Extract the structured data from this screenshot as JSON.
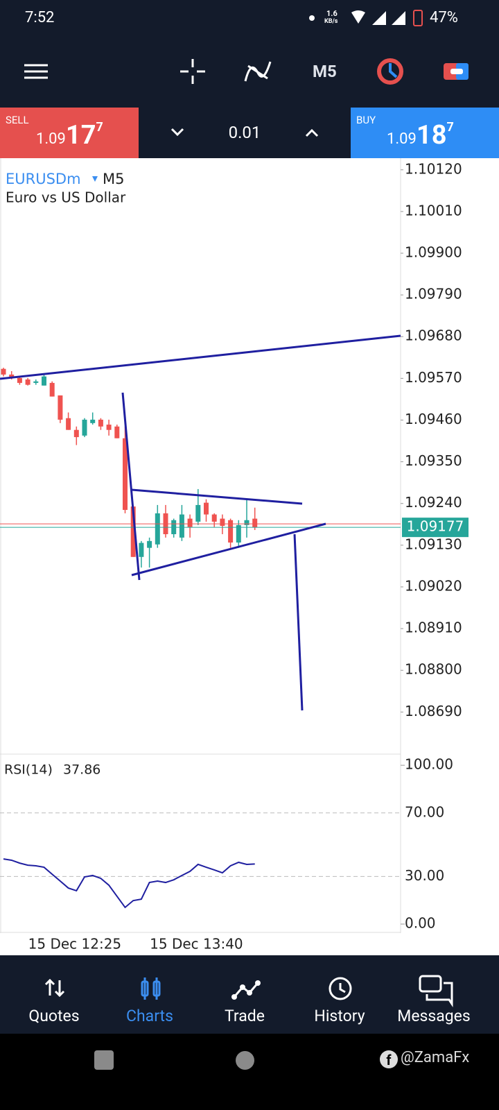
{
  "status_bar": {
    "time": "7:52",
    "speed": "1.6",
    "speed_unit": "KB/s",
    "battery": "47%"
  },
  "toolbar": {
    "timeframe": "M5"
  },
  "trade_bar": {
    "sell": {
      "label": "SELL",
      "price_main": "1.09",
      "price_big": "17",
      "price_sup": "7"
    },
    "volume": "0.01",
    "buy": {
      "label": "BUY",
      "price_main": "1.09",
      "price_big": "18",
      "price_sup": "7"
    }
  },
  "chart_data": [
    {
      "type": "candlestick",
      "symbol": "EURUSDm",
      "timeframe": "M5",
      "description": "Euro vs US Dollar",
      "categories": [
        null,
        null,
        null,
        null,
        null,
        null,
        null,
        "15 Dec 12:25",
        null,
        null,
        null,
        null,
        null,
        null,
        null,
        null,
        null,
        null,
        null,
        null,
        null,
        null,
        "15 Dec 13:40",
        null,
        null,
        null,
        null,
        null,
        null,
        null,
        null,
        null
      ],
      "open": [
        1.09595,
        1.0958,
        1.09571,
        1.09567,
        1.09558,
        1.09551,
        1.09558,
        1.09525,
        1.09465,
        1.09434,
        1.09419,
        1.09452,
        1.09461,
        1.09448,
        1.09443,
        1.09412,
        1.09232,
        1.09099,
        1.09123,
        1.09132,
        1.09214,
        1.09159,
        1.0915,
        1.092,
        1.09192,
        1.09242,
        1.09211,
        1.092,
        1.09196,
        1.09137,
        1.09183,
        1.092
      ],
      "high": [
        1.09598,
        1.09589,
        1.09575,
        1.09571,
        1.09567,
        1.0958,
        1.09562,
        1.09525,
        1.0948,
        1.09443,
        1.09465,
        1.0948,
        1.09465,
        1.09461,
        1.09448,
        1.09443,
        1.09236,
        1.09141,
        1.0915,
        1.09236,
        1.09236,
        1.092,
        1.09236,
        1.09211,
        1.09278,
        1.09251,
        1.09214,
        1.09211,
        1.092,
        1.09196,
        1.09251,
        1.09229
      ],
      "low": [
        1.09575,
        1.09567,
        1.09553,
        1.09551,
        1.09553,
        1.09551,
        1.09522,
        1.09452,
        1.09434,
        1.09394,
        1.09415,
        1.09448,
        1.09434,
        1.09419,
        1.09412,
        1.09214,
        1.09099,
        1.09071,
        1.09071,
        1.09123,
        1.0915,
        1.0915,
        1.09141,
        1.0915,
        1.09183,
        1.09192,
        1.09178,
        1.09159,
        1.09123,
        1.09123,
        1.0915,
        1.0917
      ],
      "close": [
        1.0958,
        1.09571,
        1.09558,
        1.09553,
        1.09562,
        1.09575,
        1.09522,
        1.09461,
        1.09434,
        1.09415,
        1.09461,
        1.09461,
        1.09443,
        1.09434,
        1.09412,
        1.09223,
        1.09099,
        1.09136,
        1.09141,
        1.09214,
        1.09159,
        1.09196,
        1.09211,
        1.09178,
        1.09236,
        1.09211,
        1.09192,
        1.09181,
        1.09137,
        1.09183,
        1.09196,
        1.09177
      ],
      "up_color": "#26a69a",
      "down_color": "#ef5350",
      "ylim": [
        1.08579,
        1.10147
      ],
      "yticks": [
        {
          "value": 1.1012,
          "label": "1.10120"
        },
        {
          "value": 1.1001,
          "label": "1.10010"
        },
        {
          "value": 1.099,
          "label": "1.09900"
        },
        {
          "value": 1.0979,
          "label": "1.09790"
        },
        {
          "value": 1.0968,
          "label": "1.09680"
        },
        {
          "value": 1.0957,
          "label": "1.09570"
        },
        {
          "value": 1.0946,
          "label": "1.09460"
        },
        {
          "value": 1.0935,
          "label": "1.09350"
        },
        {
          "value": 1.0924,
          "label": "1.09240"
        },
        {
          "value": 1.0913,
          "label": "1.09130"
        },
        {
          "value": 1.0902,
          "label": "1.09020"
        },
        {
          "value": 1.0891,
          "label": "1.08910"
        },
        {
          "value": 1.088,
          "label": "1.08800"
        },
        {
          "value": 1.0869,
          "label": "1.08690"
        }
      ],
      "current_price": 1.09177,
      "current_color": "#26a69a"
    },
    {
      "type": "line",
      "name": "RSI(14)",
      "value_label": "37.86",
      "color": "#1f1fa0",
      "values": [
        41.0,
        40.2,
        38.4,
        37.1,
        36.7,
        35.8,
        31.4,
        27.1,
        22.7,
        21.0,
        29.7,
        30.6,
        28.8,
        24.5,
        17.5,
        10.5,
        14.8,
        15.7,
        26.2,
        27.1,
        26.2,
        27.9,
        30.6,
        33.2,
        37.6,
        35.8,
        34.1,
        32.3,
        36.7,
        38.9,
        37.6,
        37.86
      ],
      "ylim": [
        -4.8,
        106.6
      ],
      "yticks": [
        {
          "value": 100,
          "label": "100.00"
        },
        {
          "value": 70,
          "label": "70.00"
        },
        {
          "value": 30,
          "label": "30.00"
        },
        {
          "value": 0,
          "label": "0.00"
        }
      ]
    }
  ],
  "bottom_nav": {
    "items": [
      "Quotes",
      "Charts",
      "Trade",
      "History",
      "Messages"
    ],
    "active": 1
  },
  "watermark": "@ZamaFx"
}
